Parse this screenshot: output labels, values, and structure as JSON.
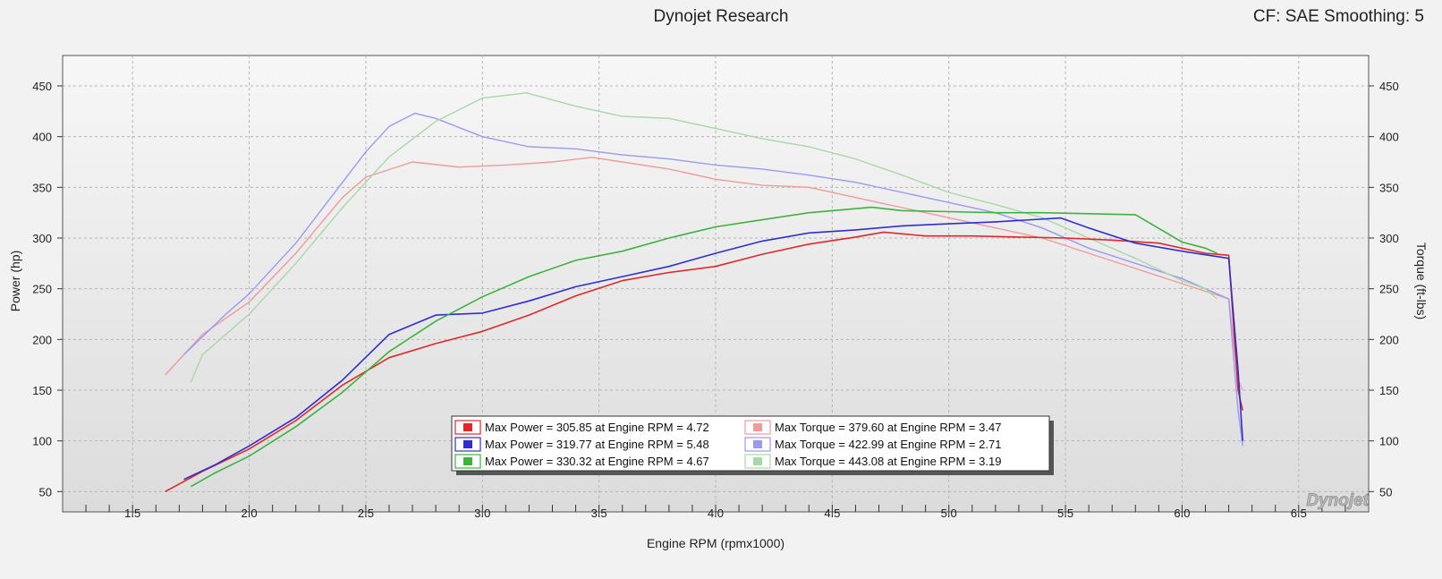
{
  "header": {
    "title": "Dynojet Research",
    "settings": "CF: SAE Smoothing: 5"
  },
  "watermark": "Dynojet",
  "chart_data": {
    "type": "line",
    "title": "Dynojet Research",
    "xlabel": "Engine RPM (rpmx1000)",
    "ylabel_left": "Power (hp)",
    "ylabel_right": "Torque (ft-lbs)",
    "xlim": [
      1.2,
      6.8
    ],
    "ylim": [
      30,
      480
    ],
    "xticks": [
      "1.5",
      "2.0",
      "2.5",
      "3.0",
      "3.5",
      "4.0",
      "4.5",
      "5.0",
      "5.5",
      "6.0",
      "6.5"
    ],
    "yticks_left": [
      "50",
      "100",
      "150",
      "200",
      "250",
      "300",
      "350",
      "400",
      "450"
    ],
    "yticks_right": [
      "50",
      "100",
      "150",
      "200",
      "250",
      "300",
      "350",
      "400",
      "450"
    ],
    "grid": true,
    "colors": {
      "red_power": "#e02828",
      "blue_power": "#2e2ed0",
      "green_power": "#3cb43c",
      "red_torque": "#f09a9a",
      "blue_torque": "#9a9af0",
      "green_torque": "#a8d8a8"
    },
    "series": [
      {
        "key": "red_power",
        "name": "Max Power = 305.85 at Engine RPM = 4.72",
        "axis": "left",
        "x": [
          1.64,
          1.8,
          2.0,
          2.2,
          2.4,
          2.6,
          2.8,
          3.0,
          3.2,
          3.4,
          3.6,
          3.8,
          4.0,
          4.2,
          4.4,
          4.6,
          4.72,
          4.9,
          5.1,
          5.3,
          5.5,
          5.7,
          5.9,
          6.1,
          6.2,
          6.24,
          6.26
        ],
        "y": [
          50,
          70,
          92,
          120,
          155,
          182,
          196,
          208,
          224,
          243,
          258,
          266,
          272,
          284,
          294,
          301,
          305.85,
          302,
          302,
          301,
          300,
          298,
          295,
          285,
          283,
          150,
          130
        ]
      },
      {
        "key": "blue_power",
        "name": "Max Power = 319.77 at Engine RPM = 5.48",
        "axis": "left",
        "x": [
          1.72,
          1.85,
          2.0,
          2.2,
          2.4,
          2.6,
          2.8,
          3.0,
          3.2,
          3.4,
          3.6,
          3.8,
          4.0,
          4.2,
          4.4,
          4.6,
          4.8,
          5.0,
          5.2,
          5.48,
          5.6,
          5.8,
          6.0,
          6.2,
          6.24,
          6.26
        ],
        "y": [
          62,
          76,
          95,
          123,
          160,
          205,
          224,
          226,
          238,
          252,
          262,
          272,
          285,
          297,
          305,
          308,
          312,
          314,
          316,
          319.77,
          310,
          295,
          287,
          280,
          170,
          100
        ]
      },
      {
        "key": "green_power",
        "name": "Max Power = 330.32 at Engine RPM = 4.67",
        "axis": "left",
        "x": [
          1.75,
          1.85,
          2.0,
          2.2,
          2.4,
          2.6,
          2.8,
          3.0,
          3.2,
          3.4,
          3.6,
          3.8,
          4.0,
          4.2,
          4.4,
          4.67,
          4.8,
          5.0,
          5.2,
          5.4,
          5.6,
          5.8,
          6.0,
          6.1,
          6.15
        ],
        "y": [
          55,
          68,
          85,
          114,
          148,
          188,
          218,
          242,
          262,
          278,
          287,
          300,
          311,
          318,
          325,
          330.32,
          327,
          326,
          325,
          325,
          324,
          323,
          296,
          290,
          285
        ]
      },
      {
        "key": "red_torque",
        "name": "Max Torque = 379.60 at Engine RPM = 3.47",
        "axis": "right",
        "x": [
          1.64,
          1.8,
          2.0,
          2.2,
          2.4,
          2.5,
          2.7,
          2.9,
          3.1,
          3.3,
          3.47,
          3.6,
          3.8,
          4.0,
          4.2,
          4.4,
          4.6,
          4.8,
          5.0,
          5.2,
          5.4,
          5.6,
          5.8,
          6.0,
          6.2,
          6.24,
          6.26
        ],
        "y": [
          165,
          205,
          237,
          285,
          340,
          360,
          375,
          370,
          372,
          375,
          379.6,
          375,
          368,
          358,
          352,
          350,
          340,
          330,
          320,
          310,
          300,
          285,
          270,
          255,
          240,
          160,
          150
        ]
      },
      {
        "key": "blue_torque",
        "name": "Max Torque = 422.99 at Engine RPM = 2.71",
        "axis": "right",
        "x": [
          1.72,
          1.9,
          2.0,
          2.2,
          2.4,
          2.5,
          2.6,
          2.71,
          2.8,
          3.0,
          3.2,
          3.4,
          3.6,
          3.8,
          4.0,
          4.2,
          4.4,
          4.6,
          4.8,
          5.0,
          5.2,
          5.4,
          5.6,
          5.8,
          6.0,
          6.2,
          6.24,
          6.26
        ],
        "y": [
          185,
          225,
          245,
          295,
          355,
          385,
          410,
          422.99,
          418,
          400,
          390,
          388,
          382,
          378,
          372,
          368,
          362,
          355,
          345,
          335,
          325,
          310,
          290,
          275,
          260,
          240,
          130,
          95
        ]
      },
      {
        "key": "green_torque",
        "name": "Max Torque = 443.08 at Engine RPM = 3.19",
        "axis": "right",
        "x": [
          1.75,
          1.8,
          2.0,
          2.2,
          2.4,
          2.6,
          2.8,
          3.0,
          3.19,
          3.4,
          3.6,
          3.8,
          4.0,
          4.2,
          4.4,
          4.6,
          4.8,
          5.0,
          5.2,
          5.4,
          5.6,
          5.8,
          6.0,
          6.1,
          6.15
        ],
        "y": [
          158,
          185,
          225,
          275,
          330,
          380,
          415,
          438,
          443.08,
          430,
          420,
          418,
          408,
          398,
          390,
          378,
          362,
          345,
          333,
          320,
          300,
          280,
          258,
          250,
          240
        ]
      }
    ]
  }
}
